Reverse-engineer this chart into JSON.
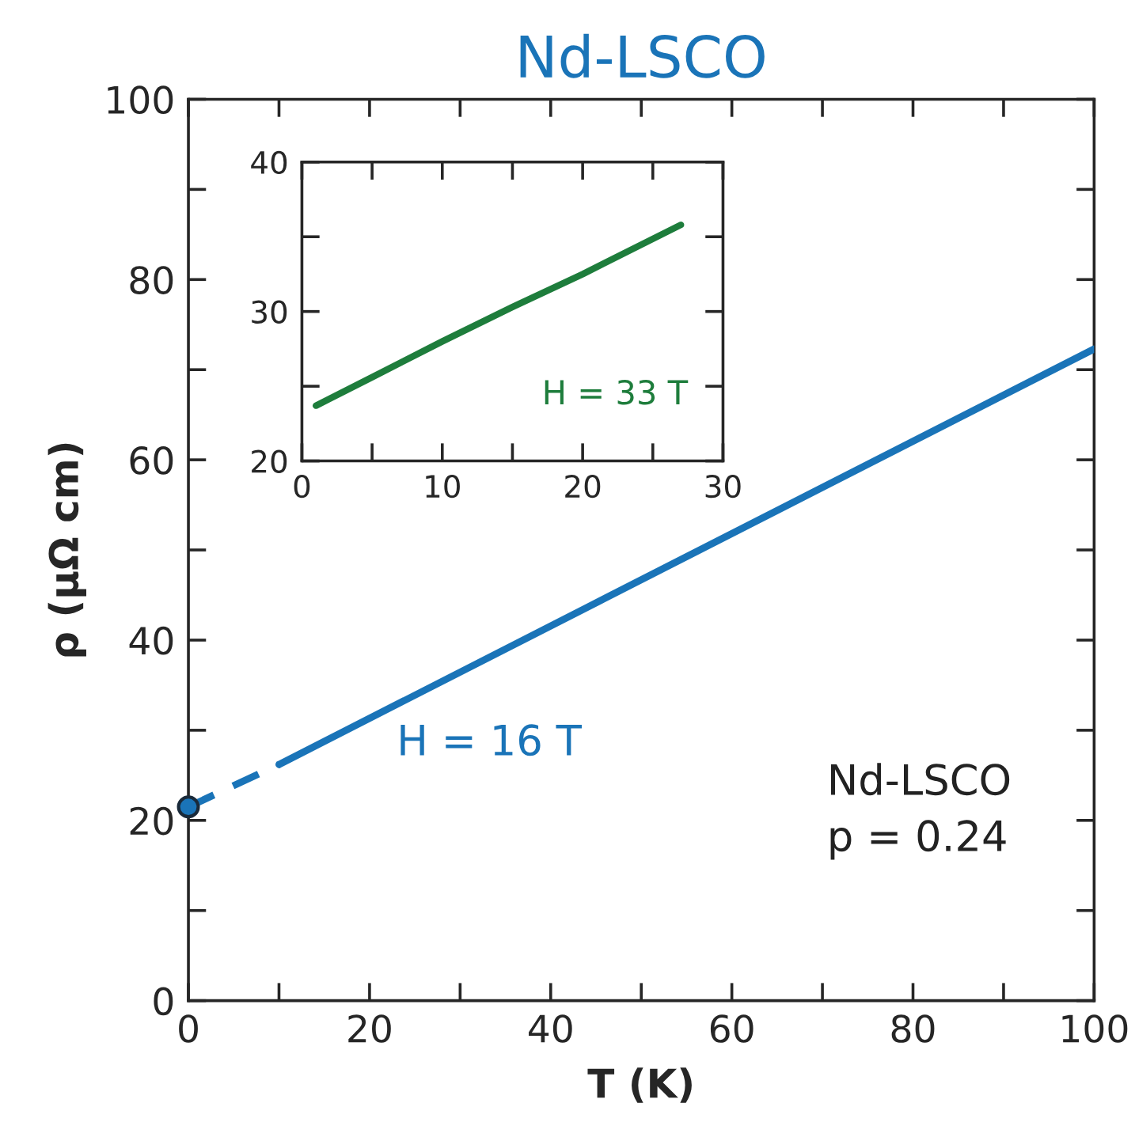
{
  "chart_data": [
    {
      "type": "line",
      "title": "Nd-LSCO",
      "xlabel": "T (K)",
      "ylabel": "ρ (μΩ cm)",
      "xlim": [
        0,
        100
      ],
      "ylim": [
        0,
        100
      ],
      "xticks": [
        0,
        {
          "value": 10,
          "label": null
        },
        20,
        {
          "value": 30,
          "label": null
        },
        40,
        {
          "value": 50,
          "label": null
        },
        60,
        {
          "value": 70,
          "label": null
        },
        80,
        {
          "value": 90,
          "label": null
        },
        100
      ],
      "yticks": [
        0,
        {
          "value": 10,
          "label": null
        },
        20,
        {
          "value": 30,
          "label": null
        },
        40,
        {
          "value": 50,
          "label": null
        },
        60,
        {
          "value": 70,
          "label": null
        },
        80,
        {
          "value": 90,
          "label": null
        },
        100
      ],
      "series": [
        {
          "color": "#1a74b8",
          "x": [
            10,
            100
          ],
          "values": [
            26.2,
            72.3
          ],
          "line_style": "solid"
        },
        {
          "color": "#1a74b8",
          "x": [
            0,
            10
          ],
          "values": [
            21.5,
            26.2
          ],
          "line_style": "dashed"
        },
        {
          "type": "scatter",
          "color": "#1a74b8",
          "x": [
            0
          ],
          "values": [
            21.5
          ],
          "marker": "circle"
        }
      ],
      "annotations": [
        "H = 16 T",
        "Nd-LSCO\np = 0.24"
      ],
      "grid": false,
      "legend": false
    },
    {
      "type": "line",
      "xlim": [
        0,
        30
      ],
      "ylim": [
        20,
        40
      ],
      "xticks": [
        0,
        {
          "value": 5,
          "label": null
        },
        10,
        {
          "value": 15,
          "label": null
        },
        20,
        {
          "value": 25,
          "label": null
        },
        30
      ],
      "yticks": [
        20,
        {
          "value": 25,
          "label": null
        },
        30,
        {
          "value": 35,
          "label": null
        },
        40
      ],
      "series": [
        {
          "color": "#1e7d3c",
          "x": [
            1,
            5,
            10,
            15,
            20,
            27
          ],
          "values": [
            23.7,
            25.6,
            28.0,
            30.3,
            32.5,
            35.8
          ],
          "line_style": "solid"
        }
      ],
      "annotations": [
        "H = 33 T"
      ],
      "grid": false,
      "legend": false
    }
  ]
}
